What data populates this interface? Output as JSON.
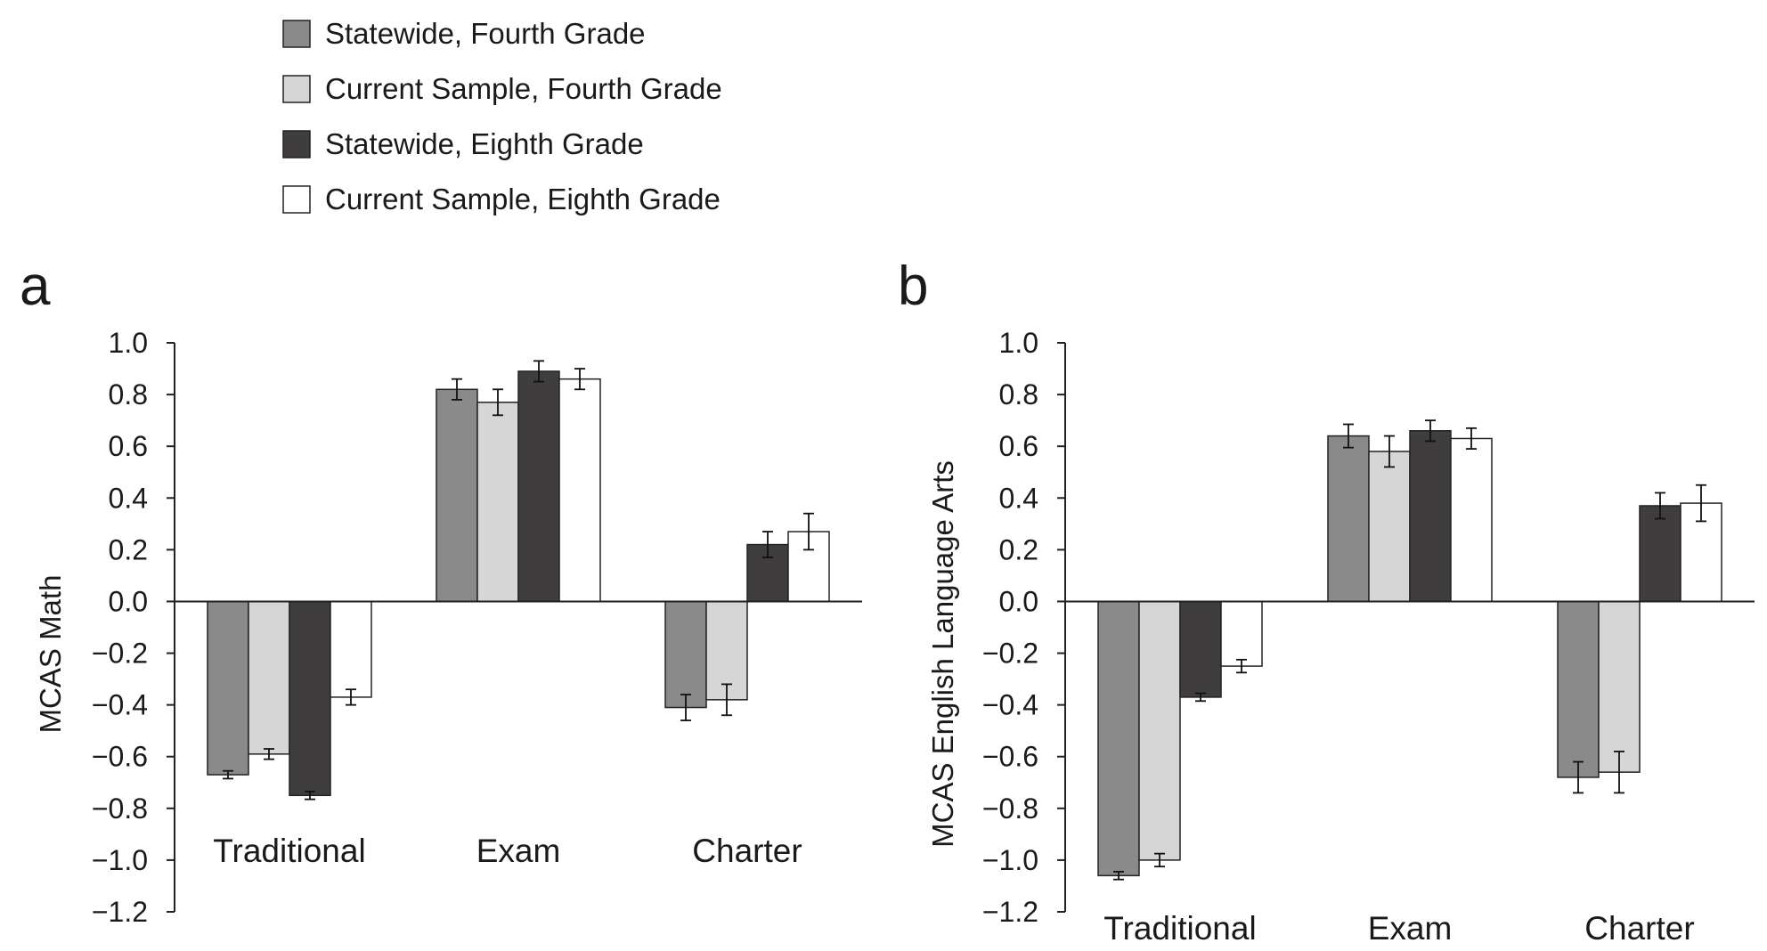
{
  "legend": {
    "items": [
      {
        "label": "Statewide, Fourth Grade",
        "color": "#8a8a8a"
      },
      {
        "label": "Current Sample, Fourth Grade",
        "color": "#d6d6d6"
      },
      {
        "label": "Statewide, Eighth Grade",
        "color": "#403d3e"
      },
      {
        "label": "Current Sample, Eighth Grade",
        "color": "#ffffff"
      }
    ]
  },
  "chart_data": [
    {
      "type": "bar",
      "panel_label": "a",
      "ylabel": "MCAS Math",
      "xlabel": "",
      "ylim": [
        -1.2,
        1.0
      ],
      "yticks": [
        "1.0",
        "0.8",
        "0.6",
        "0.4",
        "0.2",
        "0.0",
        "−0.2",
        "−0.4",
        "−0.6",
        "−0.8",
        "−1.0",
        "−1.2"
      ],
      "categories": [
        "Traditional",
        "Exam",
        "Charter"
      ],
      "series": [
        {
          "name": "Statewide, Fourth Grade",
          "values": [
            -0.67,
            0.82,
            -0.41
          ],
          "errors": [
            0.015,
            0.04,
            0.05
          ]
        },
        {
          "name": "Current Sample, Fourth Grade",
          "values": [
            -0.59,
            0.77,
            -0.38
          ],
          "errors": [
            0.02,
            0.05,
            0.06
          ]
        },
        {
          "name": "Statewide, Eighth Grade",
          "values": [
            -0.75,
            0.89,
            0.22
          ],
          "errors": [
            0.015,
            0.04,
            0.05
          ]
        },
        {
          "name": "Current Sample, Eighth Grade",
          "values": [
            -0.37,
            0.86,
            0.27
          ],
          "errors": [
            0.03,
            0.04,
            0.07
          ]
        }
      ],
      "grid": false
    },
    {
      "type": "bar",
      "panel_label": "b",
      "ylabel": "MCAS English Language Arts",
      "xlabel": "",
      "ylim": [
        -1.2,
        1.0
      ],
      "yticks": [
        "1.0",
        "0.8",
        "0.6",
        "0.4",
        "0.2",
        "0.0",
        "−0.2",
        "−0.4",
        "−0.6",
        "−0.8",
        "−1.0",
        "−1.2"
      ],
      "categories": [
        "Traditional",
        "Exam",
        "Charter"
      ],
      "series": [
        {
          "name": "Statewide, Fourth Grade",
          "values": [
            -1.06,
            0.64,
            -0.68
          ],
          "errors": [
            0.015,
            0.045,
            0.06
          ]
        },
        {
          "name": "Current Sample, Fourth Grade",
          "values": [
            -1.0,
            0.58,
            -0.66
          ],
          "errors": [
            0.025,
            0.06,
            0.08
          ]
        },
        {
          "name": "Statewide, Eighth Grade",
          "values": [
            -0.37,
            0.66,
            0.37
          ],
          "errors": [
            0.015,
            0.04,
            0.05
          ]
        },
        {
          "name": "Current Sample, Eighth Grade",
          "values": [
            -0.25,
            0.63,
            0.38
          ],
          "errors": [
            0.025,
            0.04,
            0.07
          ]
        }
      ],
      "grid": false
    }
  ]
}
